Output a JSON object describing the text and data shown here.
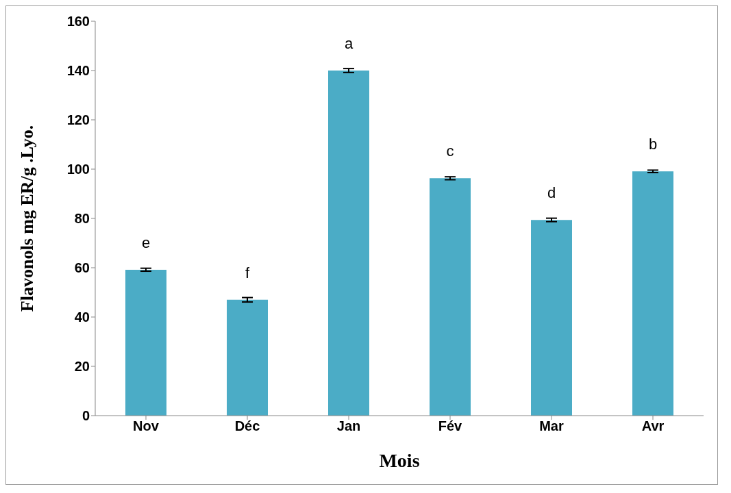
{
  "chart_data": {
    "type": "bar",
    "xlabel": "Mois",
    "ylabel": "Flavonols mg ER/g .Lyo.",
    "categories": [
      "Nov",
      "Déc",
      "Jan",
      "Fév",
      "Mar",
      "Avr"
    ],
    "values": [
      59.2,
      47,
      140,
      96.3,
      79.4,
      99.1
    ],
    "errors": [
      0.6,
      0.9,
      0.8,
      0.6,
      0.7,
      0.5
    ],
    "color": "#4bacc6",
    "ylim": [
      0,
      160
    ],
    "yticks": [
      0,
      20,
      40,
      60,
      80,
      100,
      120,
      140,
      160
    ],
    "grid": false,
    "annotations": [
      "e",
      "f",
      "a",
      "c",
      "d",
      "b"
    ]
  }
}
